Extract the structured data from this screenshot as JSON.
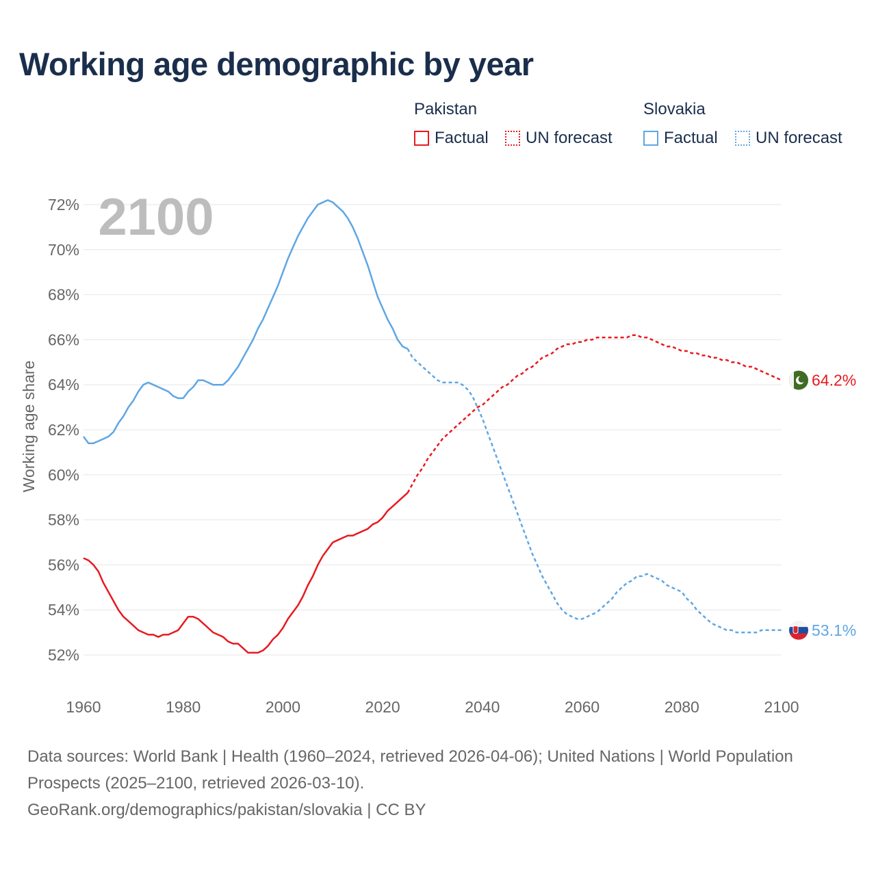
{
  "title": "Working age demographic by year",
  "colors": {
    "pakistan": "#e8191f",
    "slovakia": "#5ea6e4",
    "title": "#1a2e4c",
    "year_watermark": "#bdbdbd"
  },
  "legend": {
    "groups": [
      {
        "name": "Pakistan",
        "factual_label": "Factual",
        "forecast_label": "UN forecast",
        "color": "#e8191f"
      },
      {
        "name": "Slovakia",
        "factual_label": "Factual",
        "forecast_label": "UN forecast",
        "color": "#5ea6e4"
      }
    ]
  },
  "chart_data": {
    "type": "line",
    "title": "Working age demographic by year",
    "ylabel": "Working age share",
    "xlabel": "",
    "xlim": [
      1960,
      2100
    ],
    "ylim": [
      51,
      72.5
    ],
    "x_ticks": [
      "1960",
      "1980",
      "2000",
      "2020",
      "2040",
      "2060",
      "2080",
      "2100"
    ],
    "y_ticks": [
      "52%",
      "54%",
      "56%",
      "58%",
      "60%",
      "62%",
      "64%",
      "66%",
      "68%",
      "70%",
      "72%"
    ],
    "year_display": "2100",
    "forecast_start": 2025,
    "series": [
      {
        "name": "Pakistan",
        "end_label": "64.2%",
        "points": [
          [
            1960,
            56.3
          ],
          [
            1961,
            56.2
          ],
          [
            1962,
            56.0
          ],
          [
            1963,
            55.7
          ],
          [
            1964,
            55.2
          ],
          [
            1965,
            54.8
          ],
          [
            1966,
            54.4
          ],
          [
            1967,
            54.0
          ],
          [
            1968,
            53.7
          ],
          [
            1969,
            53.5
          ],
          [
            1970,
            53.3
          ],
          [
            1971,
            53.1
          ],
          [
            1972,
            53.0
          ],
          [
            1973,
            52.9
          ],
          [
            1974,
            52.9
          ],
          [
            1975,
            52.8
          ],
          [
            1976,
            52.9
          ],
          [
            1977,
            52.9
          ],
          [
            1978,
            53.0
          ],
          [
            1979,
            53.1
          ],
          [
            1980,
            53.4
          ],
          [
            1981,
            53.7
          ],
          [
            1982,
            53.7
          ],
          [
            1983,
            53.6
          ],
          [
            1984,
            53.4
          ],
          [
            1985,
            53.2
          ],
          [
            1986,
            53.0
          ],
          [
            1987,
            52.9
          ],
          [
            1988,
            52.8
          ],
          [
            1989,
            52.6
          ],
          [
            1990,
            52.5
          ],
          [
            1991,
            52.5
          ],
          [
            1992,
            52.3
          ],
          [
            1993,
            52.1
          ],
          [
            1994,
            52.1
          ],
          [
            1995,
            52.1
          ],
          [
            1996,
            52.2
          ],
          [
            1997,
            52.4
          ],
          [
            1998,
            52.7
          ],
          [
            1999,
            52.9
          ],
          [
            2000,
            53.2
          ],
          [
            2001,
            53.6
          ],
          [
            2002,
            53.9
          ],
          [
            2003,
            54.2
          ],
          [
            2004,
            54.6
          ],
          [
            2005,
            55.1
          ],
          [
            2006,
            55.5
          ],
          [
            2007,
            56.0
          ],
          [
            2008,
            56.4
          ],
          [
            2009,
            56.7
          ],
          [
            2010,
            57.0
          ],
          [
            2011,
            57.1
          ],
          [
            2012,
            57.2
          ],
          [
            2013,
            57.3
          ],
          [
            2014,
            57.3
          ],
          [
            2015,
            57.4
          ],
          [
            2016,
            57.5
          ],
          [
            2017,
            57.6
          ],
          [
            2018,
            57.8
          ],
          [
            2019,
            57.9
          ],
          [
            2020,
            58.1
          ],
          [
            2021,
            58.4
          ],
          [
            2022,
            58.6
          ],
          [
            2023,
            58.8
          ],
          [
            2024,
            59.0
          ],
          [
            2025,
            59.2
          ],
          [
            2026,
            59.6
          ],
          [
            2027,
            60.0
          ],
          [
            2028,
            60.3
          ],
          [
            2029,
            60.7
          ],
          [
            2030,
            61.0
          ],
          [
            2031,
            61.3
          ],
          [
            2032,
            61.6
          ],
          [
            2033,
            61.8
          ],
          [
            2034,
            62.0
          ],
          [
            2035,
            62.2
          ],
          [
            2036,
            62.4
          ],
          [
            2037,
            62.6
          ],
          [
            2038,
            62.8
          ],
          [
            2039,
            63.0
          ],
          [
            2040,
            63.1
          ],
          [
            2041,
            63.3
          ],
          [
            2042,
            63.5
          ],
          [
            2043,
            63.7
          ],
          [
            2044,
            63.9
          ],
          [
            2045,
            64.0
          ],
          [
            2046,
            64.2
          ],
          [
            2047,
            64.4
          ],
          [
            2048,
            64.5
          ],
          [
            2049,
            64.7
          ],
          [
            2050,
            64.8
          ],
          [
            2051,
            65.0
          ],
          [
            2052,
            65.2
          ],
          [
            2053,
            65.3
          ],
          [
            2054,
            65.4
          ],
          [
            2055,
            65.6
          ],
          [
            2056,
            65.7
          ],
          [
            2057,
            65.8
          ],
          [
            2058,
            65.8
          ],
          [
            2059,
            65.9
          ],
          [
            2060,
            65.9
          ],
          [
            2061,
            66.0
          ],
          [
            2062,
            66.0
          ],
          [
            2063,
            66.1
          ],
          [
            2064,
            66.1
          ],
          [
            2065,
            66.1
          ],
          [
            2066,
            66.1
          ],
          [
            2067,
            66.1
          ],
          [
            2068,
            66.1
          ],
          [
            2069,
            66.1
          ],
          [
            2070,
            66.2
          ],
          [
            2071,
            66.2
          ],
          [
            2072,
            66.1
          ],
          [
            2073,
            66.1
          ],
          [
            2074,
            66.0
          ],
          [
            2075,
            65.9
          ],
          [
            2076,
            65.8
          ],
          [
            2077,
            65.7
          ],
          [
            2078,
            65.7
          ],
          [
            2079,
            65.6
          ],
          [
            2080,
            65.5
          ],
          [
            2081,
            65.5
          ],
          [
            2082,
            65.4
          ],
          [
            2083,
            65.4
          ],
          [
            2084,
            65.3
          ],
          [
            2085,
            65.3
          ],
          [
            2086,
            65.2
          ],
          [
            2087,
            65.2
          ],
          [
            2088,
            65.1
          ],
          [
            2089,
            65.1
          ],
          [
            2090,
            65.0
          ],
          [
            2091,
            65.0
          ],
          [
            2092,
            64.9
          ],
          [
            2093,
            64.8
          ],
          [
            2094,
            64.8
          ],
          [
            2095,
            64.7
          ],
          [
            2096,
            64.6
          ],
          [
            2097,
            64.5
          ],
          [
            2098,
            64.4
          ],
          [
            2099,
            64.3
          ],
          [
            2100,
            64.2
          ]
        ]
      },
      {
        "name": "Slovakia",
        "end_label": "53.1%",
        "points": [
          [
            1960,
            61.7
          ],
          [
            1961,
            61.4
          ],
          [
            1962,
            61.4
          ],
          [
            1963,
            61.5
          ],
          [
            1964,
            61.6
          ],
          [
            1965,
            61.7
          ],
          [
            1966,
            61.9
          ],
          [
            1967,
            62.3
          ],
          [
            1968,
            62.6
          ],
          [
            1969,
            63.0
          ],
          [
            1970,
            63.3
          ],
          [
            1971,
            63.7
          ],
          [
            1972,
            64.0
          ],
          [
            1973,
            64.1
          ],
          [
            1974,
            64.0
          ],
          [
            1975,
            63.9
          ],
          [
            1976,
            63.8
          ],
          [
            1977,
            63.7
          ],
          [
            1978,
            63.5
          ],
          [
            1979,
            63.4
          ],
          [
            1980,
            63.4
          ],
          [
            1981,
            63.7
          ],
          [
            1982,
            63.9
          ],
          [
            1983,
            64.2
          ],
          [
            1984,
            64.2
          ],
          [
            1985,
            64.1
          ],
          [
            1986,
            64.0
          ],
          [
            1987,
            64.0
          ],
          [
            1988,
            64.0
          ],
          [
            1989,
            64.2
          ],
          [
            1990,
            64.5
          ],
          [
            1991,
            64.8
          ],
          [
            1992,
            65.2
          ],
          [
            1993,
            65.6
          ],
          [
            1994,
            66.0
          ],
          [
            1995,
            66.5
          ],
          [
            1996,
            66.9
          ],
          [
            1997,
            67.4
          ],
          [
            1998,
            67.9
          ],
          [
            1999,
            68.4
          ],
          [
            2000,
            69.0
          ],
          [
            2001,
            69.6
          ],
          [
            2002,
            70.1
          ],
          [
            2003,
            70.6
          ],
          [
            2004,
            71.0
          ],
          [
            2005,
            71.4
          ],
          [
            2006,
            71.7
          ],
          [
            2007,
            72.0
          ],
          [
            2008,
            72.1
          ],
          [
            2009,
            72.2
          ],
          [
            2010,
            72.1
          ],
          [
            2011,
            71.9
          ],
          [
            2012,
            71.7
          ],
          [
            2013,
            71.4
          ],
          [
            2014,
            71.0
          ],
          [
            2015,
            70.5
          ],
          [
            2016,
            69.9
          ],
          [
            2017,
            69.3
          ],
          [
            2018,
            68.6
          ],
          [
            2019,
            67.9
          ],
          [
            2020,
            67.4
          ],
          [
            2021,
            66.9
          ],
          [
            2022,
            66.5
          ],
          [
            2023,
            66.0
          ],
          [
            2024,
            65.7
          ],
          [
            2025,
            65.6
          ],
          [
            2026,
            65.2
          ],
          [
            2027,
            65.0
          ],
          [
            2028,
            64.8
          ],
          [
            2029,
            64.6
          ],
          [
            2030,
            64.4
          ],
          [
            2031,
            64.2
          ],
          [
            2032,
            64.1
          ],
          [
            2033,
            64.1
          ],
          [
            2034,
            64.1
          ],
          [
            2035,
            64.1
          ],
          [
            2036,
            64.0
          ],
          [
            2037,
            63.8
          ],
          [
            2038,
            63.5
          ],
          [
            2039,
            63.0
          ],
          [
            2040,
            62.5
          ],
          [
            2041,
            61.9
          ],
          [
            2042,
            61.3
          ],
          [
            2043,
            60.7
          ],
          [
            2044,
            60.1
          ],
          [
            2045,
            59.5
          ],
          [
            2046,
            58.9
          ],
          [
            2047,
            58.3
          ],
          [
            2048,
            57.7
          ],
          [
            2049,
            57.1
          ],
          [
            2050,
            56.5
          ],
          [
            2051,
            56.0
          ],
          [
            2052,
            55.5
          ],
          [
            2053,
            55.1
          ],
          [
            2054,
            54.7
          ],
          [
            2055,
            54.3
          ],
          [
            2056,
            54.0
          ],
          [
            2057,
            53.8
          ],
          [
            2058,
            53.7
          ],
          [
            2059,
            53.6
          ],
          [
            2060,
            53.6
          ],
          [
            2061,
            53.7
          ],
          [
            2062,
            53.8
          ],
          [
            2063,
            53.9
          ],
          [
            2064,
            54.1
          ],
          [
            2065,
            54.3
          ],
          [
            2066,
            54.5
          ],
          [
            2067,
            54.8
          ],
          [
            2068,
            55.0
          ],
          [
            2069,
            55.2
          ],
          [
            2070,
            55.3
          ],
          [
            2071,
            55.5
          ],
          [
            2072,
            55.5
          ],
          [
            2073,
            55.6
          ],
          [
            2074,
            55.5
          ],
          [
            2075,
            55.4
          ],
          [
            2076,
            55.3
          ],
          [
            2077,
            55.1
          ],
          [
            2078,
            55.0
          ],
          [
            2079,
            54.9
          ],
          [
            2080,
            54.8
          ],
          [
            2081,
            54.5
          ],
          [
            2082,
            54.3
          ],
          [
            2083,
            54.0
          ],
          [
            2084,
            53.8
          ],
          [
            2085,
            53.6
          ],
          [
            2086,
            53.4
          ],
          [
            2087,
            53.3
          ],
          [
            2088,
            53.2
          ],
          [
            2089,
            53.1
          ],
          [
            2090,
            53.1
          ],
          [
            2091,
            53.0
          ],
          [
            2092,
            53.0
          ],
          [
            2093,
            53.0
          ],
          [
            2094,
            53.0
          ],
          [
            2095,
            53.0
          ],
          [
            2096,
            53.1
          ],
          [
            2097,
            53.1
          ],
          [
            2098,
            53.1
          ],
          [
            2099,
            53.1
          ],
          [
            2100,
            53.1
          ]
        ]
      }
    ]
  },
  "footer": {
    "sources": "Data sources: World Bank | Health (1960–2024, retrieved 2026-04-06); United Nations | World Population Prospects (2025–2100, retrieved 2026-03-10).",
    "link": "GeoRank.org/demographics/pakistan/slovakia | CC BY"
  }
}
